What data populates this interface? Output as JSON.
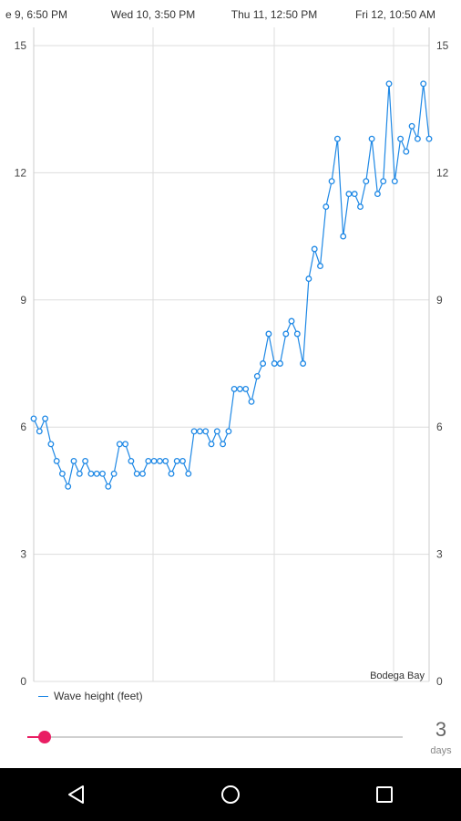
{
  "chart_data": {
    "type": "line",
    "x_ticks": [
      "e 9, 6:50 PM",
      "Wed 10, 3:50 PM",
      "Thu 11, 12:50 PM",
      "Fri 12, 10:50 AM"
    ],
    "y_ticks": [
      0,
      3,
      6,
      9,
      12,
      15
    ],
    "ylim": [
      0,
      15
    ],
    "grid": true,
    "annotation": "Bodega Bay",
    "legend_position": "bottom-left",
    "series": [
      {
        "name": "Wave height (feet)",
        "color": "#1e88e5",
        "values": [
          6.2,
          5.9,
          6.2,
          5.6,
          5.2,
          4.9,
          4.6,
          5.2,
          4.9,
          5.2,
          4.9,
          4.9,
          4.9,
          4.6,
          4.9,
          5.6,
          5.6,
          5.2,
          4.9,
          4.9,
          5.2,
          5.2,
          5.2,
          5.2,
          4.9,
          5.2,
          5.2,
          4.9,
          5.9,
          5.9,
          5.9,
          5.6,
          5.9,
          5.6,
          5.9,
          6.9,
          6.9,
          6.9,
          6.6,
          7.2,
          7.5,
          8.2,
          7.5,
          7.5,
          8.2,
          8.5,
          8.2,
          7.5,
          9.5,
          10.2,
          9.8,
          11.2,
          11.8,
          12.8,
          10.5,
          11.5,
          11.5,
          11.2,
          11.8,
          12.8,
          11.5,
          11.8,
          14.1,
          11.8,
          12.8,
          12.5,
          13.1,
          12.8,
          14.1,
          12.8
        ]
      }
    ]
  },
  "controls": {
    "days_value": "3",
    "days_unit": "days",
    "slider_fraction": 0.0
  },
  "nav": {
    "back_icon": "back-icon",
    "home_icon": "home-icon",
    "recents_icon": "recents-icon"
  }
}
